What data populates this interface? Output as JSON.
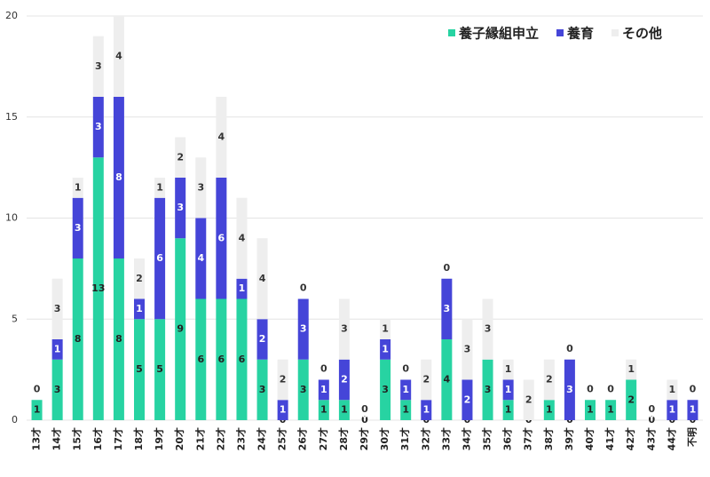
{
  "chart_data": {
    "type": "stacked_bar",
    "categories": [
      "13才",
      "14才",
      "15才",
      "16才",
      "17才",
      "18才",
      "19才",
      "20才",
      "21才",
      "22才",
      "23才",
      "24才",
      "25才",
      "26才",
      "27才",
      "28才",
      "29才",
      "30才",
      "31才",
      "32才",
      "33才",
      "34才",
      "35才",
      "36才",
      "37才",
      "38才",
      "39才",
      "40才",
      "41才",
      "42才",
      "43才",
      "44才",
      "不明"
    ],
    "series": [
      {
        "name": "養子縁組申立",
        "color": "#27d3a2",
        "values": [
          1,
          3,
          8,
          13,
          8,
          5,
          5,
          9,
          6,
          6,
          6,
          3,
          0,
          3,
          1,
          1,
          0,
          3,
          1,
          0,
          4,
          0,
          3,
          1,
          0,
          1,
          0,
          1,
          1,
          2,
          0,
          0,
          0
        ]
      },
      {
        "name": "養育",
        "color": "#4545d8",
        "values": [
          0,
          1,
          3,
          3,
          8,
          1,
          6,
          3,
          4,
          6,
          1,
          2,
          1,
          3,
          1,
          2,
          0,
          1,
          1,
          1,
          3,
          2,
          0,
          1,
          0,
          0,
          3,
          0,
          0,
          0,
          0,
          1,
          1
        ]
      },
      {
        "name": "その他",
        "color": "#eeeeee",
        "values": [
          0,
          3,
          1,
          3,
          4,
          2,
          1,
          2,
          3,
          4,
          4,
          4,
          2,
          0,
          0,
          3,
          0,
          1,
          0,
          2,
          0,
          3,
          3,
          1,
          2,
          2,
          0,
          0,
          0,
          1,
          0,
          1,
          0
        ]
      }
    ],
    "ylim": [
      0,
      20
    ],
    "yticks": [
      0,
      5,
      10,
      15,
      20
    ],
    "grid": true,
    "legend": "top-right"
  }
}
